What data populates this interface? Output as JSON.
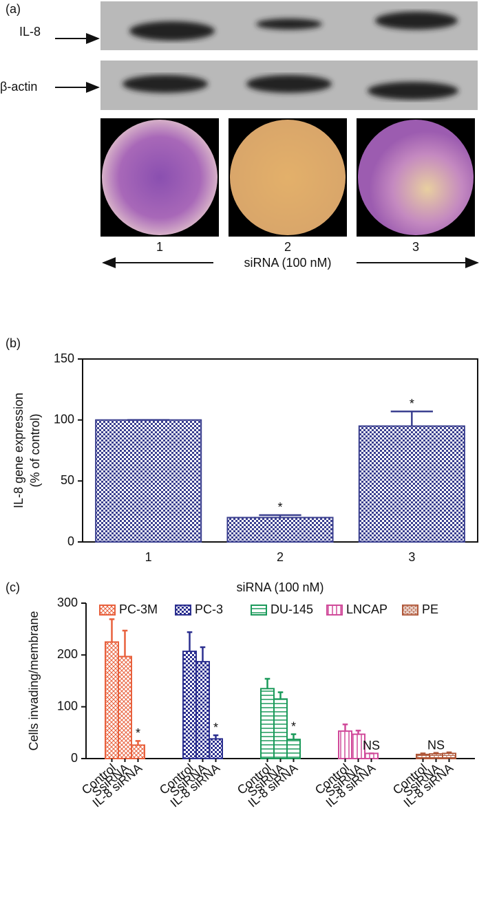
{
  "panel_a": {
    "panel_label": "(a)",
    "blot_labels": [
      "IL-8",
      "β-actin"
    ],
    "lanes": [
      "1",
      "2",
      "3"
    ],
    "xlabel": "siRNA (100 nM)"
  },
  "chart_data": [
    {
      "type": "bar",
      "panel_label": "(b)",
      "categories": [
        "1",
        "2",
        "3"
      ],
      "values": [
        100,
        20,
        95
      ],
      "errors": [
        0,
        2,
        12
      ],
      "annotations": [
        null,
        "*",
        "*"
      ],
      "color": "#3a3f8f",
      "xlabel": "siRNA (100 nM)",
      "ylabel": [
        "IL-8 gene expression",
        "(% of control)"
      ],
      "ylim": [
        0,
        150
      ],
      "yticks": [
        0,
        50,
        100,
        150
      ],
      "frame": true
    },
    {
      "type": "bar",
      "panel_label": "(c)",
      "categories": [
        "Control",
        "SsiRNA",
        "IL-8 siRNA"
      ],
      "series": [
        {
          "name": "PC-3M",
          "color": "#e8603c",
          "values": [
            225,
            197,
            26
          ],
          "errors": [
            44,
            50,
            8
          ],
          "annotations": [
            null,
            null,
            "*"
          ]
        },
        {
          "name": "PC-3",
          "color": "#2b2f8f",
          "values": [
            207,
            187,
            38
          ],
          "errors": [
            37,
            28,
            7
          ],
          "annotations": [
            null,
            null,
            "*"
          ]
        },
        {
          "name": "DU-145",
          "color": "#1a9a5a",
          "values": [
            135,
            115,
            37
          ],
          "errors": [
            19,
            13,
            10
          ],
          "annotations": [
            null,
            null,
            "*"
          ]
        },
        {
          "name": "LNCAP",
          "color": "#d04a9a",
          "values": [
            53,
            47,
            10
          ],
          "errors": [
            13,
            7,
            0
          ],
          "annotations": [
            null,
            null,
            "NS"
          ]
        },
        {
          "name": "PE",
          "color": "#b0583a",
          "values": [
            8,
            9,
            10
          ],
          "errors": [
            2,
            2,
            2
          ],
          "annotations": [
            null,
            "NS",
            null
          ]
        }
      ],
      "ylabel": "Cells invading/membrane",
      "ylim": [
        0,
        300
      ],
      "yticks": [
        0,
        100,
        200,
        300
      ],
      "frame": false
    }
  ]
}
